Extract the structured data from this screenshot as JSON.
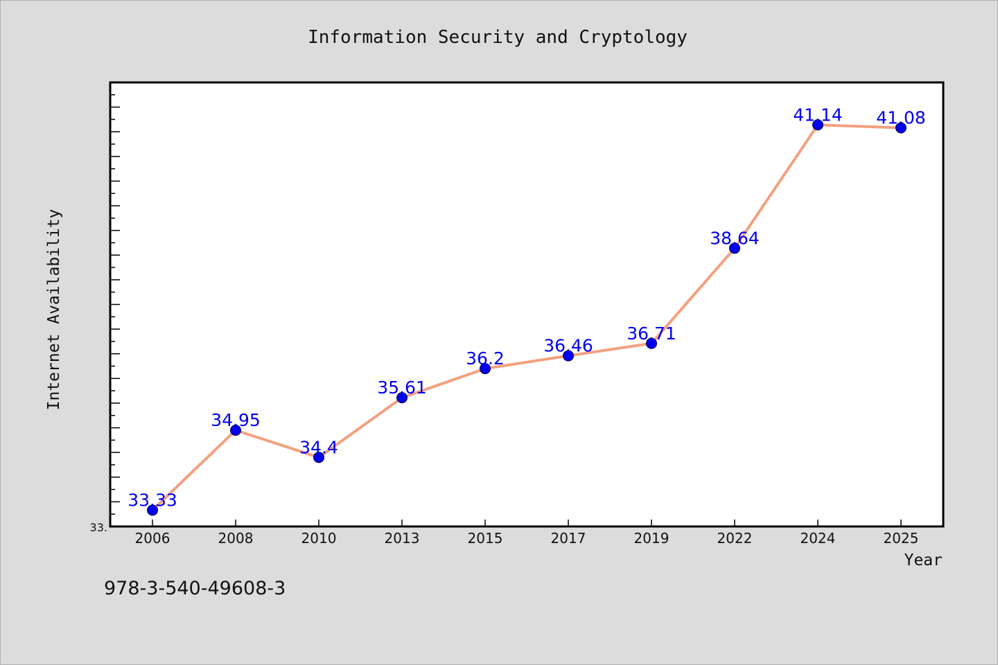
{
  "chart_data": {
    "type": "line",
    "title": "Information Security and Cryptology",
    "xlabel": "Year",
    "ylabel": "Internet Availability",
    "categories": [
      "2006",
      "2008",
      "2010",
      "2013",
      "2015",
      "2017",
      "2019",
      "2022",
      "2024",
      "2025"
    ],
    "series": [
      {
        "values": [
          33.33,
          34.95,
          34.4,
          35.61,
          36.2,
          36.46,
          36.71,
          38.64,
          41.14,
          41.08
        ]
      }
    ],
    "data_labels": [
      "33.33",
      "34.95",
      "34.4",
      "35.61",
      "36.2",
      "36.46",
      "36.71",
      "38.64",
      "41.14",
      "41.08"
    ],
    "ylim": [
      33.0,
      42.0
    ],
    "y_tick_label": "33.",
    "line_color": "#f4a07e",
    "marker_color": "#0000ee",
    "label_color": "#0000ee",
    "grid": false
  },
  "footer": {
    "id_text": "978-3-540-49608-3"
  }
}
